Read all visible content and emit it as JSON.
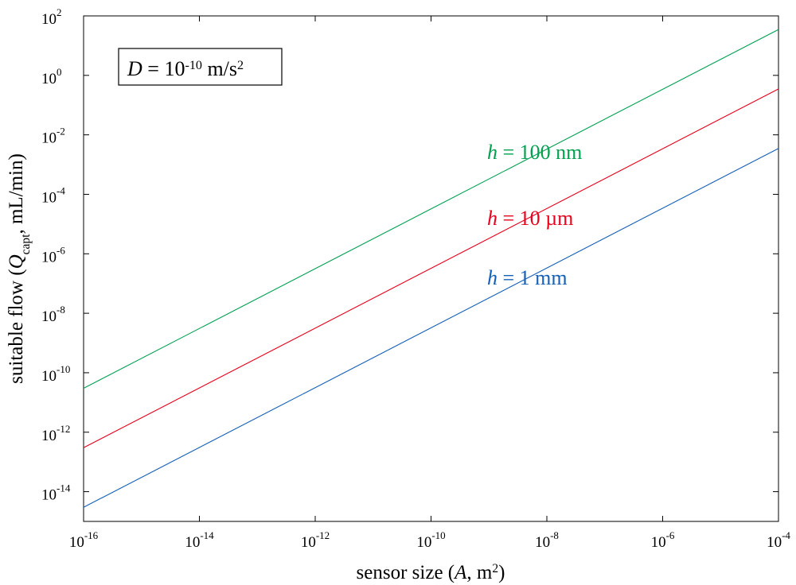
{
  "chart_data": {
    "type": "line",
    "title": "",
    "xlabel": {
      "parts": [
        {
          "text": "sensor size ("
        },
        {
          "text": "A",
          "italic": true
        },
        {
          "text": ", m"
        },
        {
          "text": "2",
          "sup": true
        },
        {
          "text": ")"
        }
      ]
    },
    "ylabel": {
      "parts": [
        {
          "text": "suitable flow ("
        },
        {
          "text": "Q",
          "italic": true
        },
        {
          "text": "capt",
          "sub": true
        },
        {
          "text": ", mL/min)"
        }
      ]
    },
    "x_scale": "log",
    "y_scale": "log",
    "xlim": [
      1e-16,
      0.0001
    ],
    "ylim": [
      1e-15,
      100.0
    ],
    "x_ticks": [
      {
        "base": "10",
        "exp": "-16",
        "value": 1e-16
      },
      {
        "base": "10",
        "exp": "-14",
        "value": 1e-14
      },
      {
        "base": "10",
        "exp": "-12",
        "value": 1e-12
      },
      {
        "base": "10",
        "exp": "-10",
        "value": 1e-10
      },
      {
        "base": "10",
        "exp": "-8",
        "value": 1e-08
      },
      {
        "base": "10",
        "exp": "-6",
        "value": 1e-06
      },
      {
        "base": "10",
        "exp": "-4",
        "value": 0.0001
      }
    ],
    "y_ticks": [
      {
        "base": "10",
        "exp": "-14",
        "value": 1e-14
      },
      {
        "base": "10",
        "exp": "-12",
        "value": 1e-12
      },
      {
        "base": "10",
        "exp": "-10",
        "value": 1e-10
      },
      {
        "base": "10",
        "exp": "-8",
        "value": 1e-08
      },
      {
        "base": "10",
        "exp": "-6",
        "value": 1e-06
      },
      {
        "base": "10",
        "exp": "-4",
        "value": 0.0001
      },
      {
        "base": "10",
        "exp": "-2",
        "value": 0.01
      },
      {
        "base": "10",
        "exp": "0",
        "value": 1
      },
      {
        "base": "10",
        "exp": "2",
        "value": 100
      }
    ],
    "grid": false,
    "series": [
      {
        "name": "h = 100 nm",
        "label_parts": [
          {
            "text": "h",
            "italic": true
          },
          {
            "text": " = 100 nm"
          }
        ],
        "color": "#00a050",
        "x": [
          1e-16,
          0.0001
        ],
        "y": [
          3e-11,
          35
        ]
      },
      {
        "name": "h = 10 µm",
        "label_parts": [
          {
            "text": "h",
            "italic": true
          },
          {
            "text": " = 10 µm"
          }
        ],
        "color": "#e8001c",
        "x": [
          1e-16,
          0.0001
        ],
        "y": [
          3e-13,
          0.35
        ]
      },
      {
        "name": "h = 1 mm",
        "label_parts": [
          {
            "text": "h",
            "italic": true
          },
          {
            "text": " = 1 mm"
          }
        ],
        "color": "#1460b8",
        "x": [
          1e-16,
          0.0001
        ],
        "y": [
          3e-15,
          0.0035
        ]
      }
    ],
    "annotation": {
      "parts": [
        {
          "text": "D",
          "italic": true
        },
        {
          "text": " = 10"
        },
        {
          "text": "-10",
          "sup": true
        },
        {
          "text": " m/s"
        },
        {
          "text": "2",
          "sup": true
        }
      ]
    }
  }
}
